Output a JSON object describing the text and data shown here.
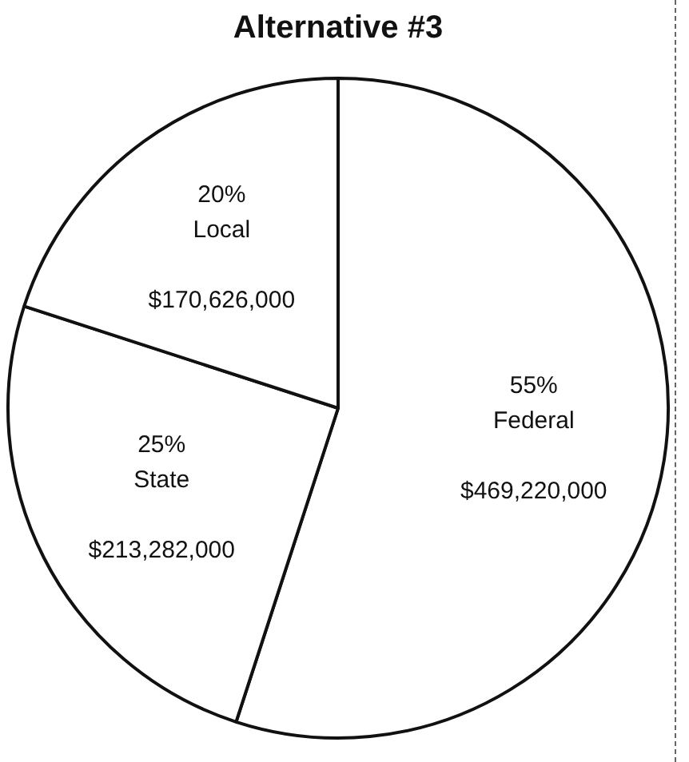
{
  "chart_data": {
    "type": "pie",
    "title": "Alternative #3",
    "categories": [
      "Federal",
      "State",
      "Local"
    ],
    "values": [
      469220000,
      213282000,
      170626000
    ],
    "value_labels": [
      "$469,220,000",
      "$213,282,000",
      "$170,626,000"
    ],
    "colors": [
      "#ffffff",
      "#ffffff",
      "#ffffff"
    ],
    "annotations": [
      {
        "text": "55%",
        "x": "Federal"
      },
      {
        "text": "25%",
        "x": "State"
      },
      {
        "text": "20%",
        "x": "Local"
      }
    ],
    "legend": false
  }
}
